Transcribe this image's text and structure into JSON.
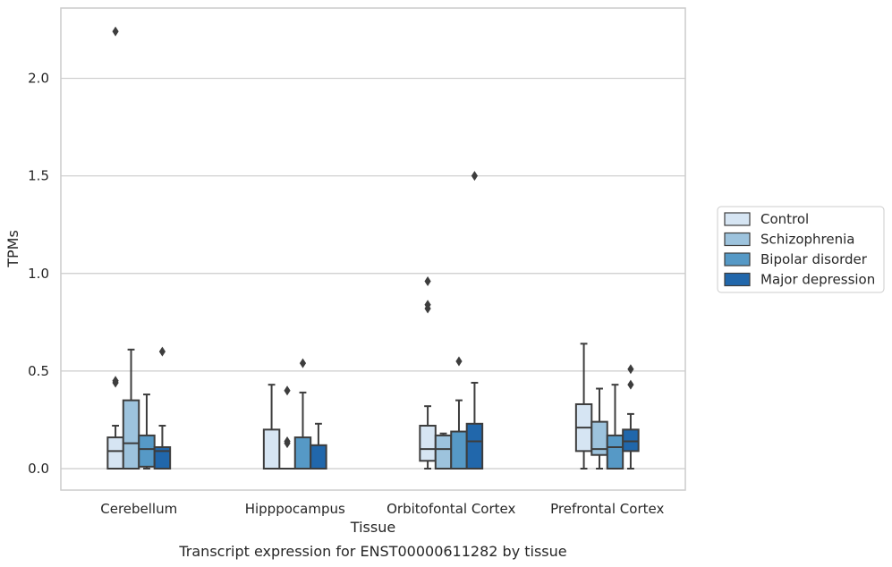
{
  "chart_data": {
    "type": "box",
    "xlabel": "Tissue",
    "ylabel": "TPMs",
    "caption": "Transcript expression for ENST00000611282 by tissue",
    "categories": [
      "Cerebellum",
      "Hipppocampus",
      "Orbitofontal Cortex",
      "Prefrontal Cortex"
    ],
    "ylim": [
      -0.11,
      2.36
    ],
    "yticks": [
      {
        "value": 0.0,
        "label": "0.0"
      },
      {
        "value": 0.5,
        "label": "0.5"
      },
      {
        "value": 1.0,
        "label": "1.0"
      },
      {
        "value": 1.5,
        "label": "1.5"
      },
      {
        "value": 2.0,
        "label": "2.0"
      }
    ],
    "grid": true,
    "legend_position": "right",
    "series": [
      {
        "name": "Control",
        "color": "#d6e5f3",
        "boxes": [
          {
            "q1": 0.0,
            "median": 0.09,
            "q3": 0.16,
            "whisker_low": 0.0,
            "whisker_high": 0.22,
            "outliers": [
              0.44,
              0.45,
              2.24
            ]
          },
          {
            "q1": 0.0,
            "median": 0.0,
            "q3": 0.2,
            "whisker_low": 0.0,
            "whisker_high": 0.43,
            "outliers": []
          },
          {
            "q1": 0.04,
            "median": 0.1,
            "q3": 0.22,
            "whisker_low": 0.0,
            "whisker_high": 0.32,
            "outliers": [
              0.82,
              0.84,
              0.96
            ]
          },
          {
            "q1": 0.09,
            "median": 0.21,
            "q3": 0.33,
            "whisker_low": 0.0,
            "whisker_high": 0.64,
            "outliers": []
          }
        ]
      },
      {
        "name": "Schizophrenia",
        "color": "#9dc3dd",
        "boxes": [
          {
            "q1": 0.0,
            "median": 0.13,
            "q3": 0.35,
            "whisker_low": 0.0,
            "whisker_high": 0.61,
            "outliers": []
          },
          {
            "q1": 0.0,
            "median": 0.0,
            "q3": 0.0,
            "whisker_low": 0.0,
            "whisker_high": 0.0,
            "outliers": [
              0.13,
              0.14,
              0.4
            ]
          },
          {
            "q1": 0.0,
            "median": 0.1,
            "q3": 0.17,
            "whisker_low": 0.0,
            "whisker_high": 0.18,
            "outliers": []
          },
          {
            "q1": 0.07,
            "median": 0.1,
            "q3": 0.24,
            "whisker_low": 0.0,
            "whisker_high": 0.41,
            "outliers": []
          }
        ]
      },
      {
        "name": "Bipolar disorder",
        "color": "#5699c6",
        "boxes": [
          {
            "q1": 0.01,
            "median": 0.1,
            "q3": 0.17,
            "whisker_low": 0.0,
            "whisker_high": 0.38,
            "outliers": []
          },
          {
            "q1": 0.0,
            "median": 0.0,
            "q3": 0.16,
            "whisker_low": 0.0,
            "whisker_high": 0.39,
            "outliers": [
              0.54
            ]
          },
          {
            "q1": 0.0,
            "median": 0.0,
            "q3": 0.19,
            "whisker_low": 0.0,
            "whisker_high": 0.35,
            "outliers": [
              0.55
            ]
          },
          {
            "q1": 0.0,
            "median": 0.11,
            "q3": 0.17,
            "whisker_low": 0.0,
            "whisker_high": 0.43,
            "outliers": []
          }
        ]
      },
      {
        "name": "Major depression",
        "color": "#2167ab",
        "boxes": [
          {
            "q1": 0.0,
            "median": 0.09,
            "q3": 0.11,
            "whisker_low": 0.0,
            "whisker_high": 0.22,
            "outliers": [
              0.6
            ]
          },
          {
            "q1": 0.0,
            "median": 0.0,
            "q3": 0.12,
            "whisker_low": 0.0,
            "whisker_high": 0.23,
            "outliers": []
          },
          {
            "q1": 0.0,
            "median": 0.14,
            "q3": 0.23,
            "whisker_low": 0.0,
            "whisker_high": 0.44,
            "outliers": [
              1.5
            ]
          },
          {
            "q1": 0.09,
            "median": 0.14,
            "q3": 0.2,
            "whisker_low": 0.0,
            "whisker_high": 0.28,
            "outliers": [
              0.43,
              0.51
            ]
          }
        ]
      }
    ]
  }
}
